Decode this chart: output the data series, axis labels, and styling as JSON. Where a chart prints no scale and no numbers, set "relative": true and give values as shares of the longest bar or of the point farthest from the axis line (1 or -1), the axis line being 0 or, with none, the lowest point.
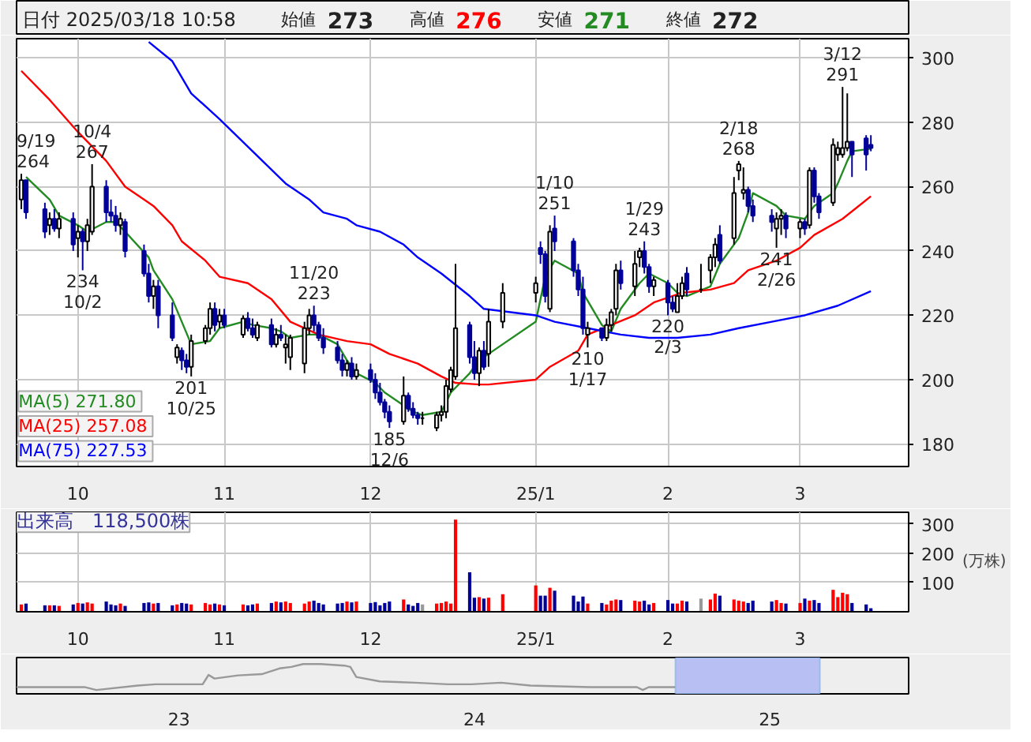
{
  "chart_data": [
    {
      "type": "candlestick",
      "title": "日付 2025/03/18 10:58",
      "x": [
        "2024-09-19",
        "2024-09-20",
        "2024-09-24",
        "2024-09-25",
        "2024-09-26",
        "2024-09-27",
        "2024-09-30",
        "2024-10-01",
        "2024-10-02",
        "2024-10-03",
        "2024-10-04",
        "2024-10-07",
        "2024-10-08",
        "2024-10-09",
        "2024-10-10",
        "2024-10-11",
        "2024-10-15",
        "2024-10-16",
        "2024-10-17",
        "2024-10-18",
        "2024-10-21",
        "2024-10-22",
        "2024-10-23",
        "2024-10-24",
        "2024-10-25",
        "2024-10-28",
        "2024-10-29",
        "2024-10-30",
        "2024-10-31",
        "2024-11-01",
        "2024-11-05",
        "2024-11-06",
        "2024-11-07",
        "2024-11-08",
        "2024-11-11",
        "2024-11-12",
        "2024-11-13",
        "2024-11-14",
        "2024-11-15",
        "2024-11-18",
        "2024-11-19",
        "2024-11-20",
        "2024-11-21",
        "2024-11-22",
        "2024-11-25",
        "2024-11-26",
        "2024-11-27",
        "2024-11-28",
        "2024-11-29",
        "2024-12-02",
        "2024-12-03",
        "2024-12-04",
        "2024-12-05",
        "2024-12-06",
        "2024-12-09",
        "2024-12-10",
        "2024-12-11",
        "2024-12-12",
        "2024-12-13",
        "2024-12-16",
        "2024-12-17",
        "2024-12-18",
        "2024-12-19",
        "2024-12-20",
        "2024-12-23",
        "2024-12-24",
        "2024-12-25",
        "2024-12-26",
        "2024-12-27",
        "2024-12-30",
        "2025-01-06",
        "2025-01-07",
        "2025-01-08",
        "2025-01-09",
        "2025-01-10",
        "2025-01-14",
        "2025-01-15",
        "2025-01-16",
        "2025-01-17",
        "2025-01-20",
        "2025-01-21",
        "2025-01-22",
        "2025-01-23",
        "2025-01-24",
        "2025-01-27",
        "2025-01-28",
        "2025-01-29",
        "2025-01-30",
        "2025-01-31",
        "2025-02-03",
        "2025-02-04",
        "2025-02-05",
        "2025-02-06",
        "2025-02-07",
        "2025-02-10",
        "2025-02-12",
        "2025-02-13",
        "2025-02-14",
        "2025-02-17",
        "2025-02-18",
        "2025-02-19",
        "2025-02-20",
        "2025-02-21",
        "2025-02-25",
        "2025-02-26",
        "2025-02-27",
        "2025-02-28",
        "2025-03-03",
        "2025-03-04",
        "2025-03-05",
        "2025-03-06",
        "2025-03-07",
        "2025-03-10",
        "2025-03-11",
        "2025-03-12",
        "2025-03-13",
        "2025-03-14",
        "2025-03-17",
        "2025-03-18"
      ],
      "colors": [
        "#ffffff",
        "#000099",
        "#000099",
        "#ffffff",
        "#000099",
        "#ffffff",
        "#000099",
        "#ffffff",
        "#000099",
        "#ffffff",
        "#ffffff",
        "#000099",
        "#000099",
        "#000099",
        "#ffffff",
        "#000099",
        "#000099",
        "#000099",
        "#ffffff",
        "#000099",
        "#000099",
        "#ffffff",
        "#000099",
        "#000099",
        "#ffffff",
        "#ffffff",
        "#ffffff",
        "#000099",
        "#ffffff",
        "#000099",
        "#ffffff",
        "#000099",
        "#000099",
        "#ffffff",
        "#000099",
        "#ffffff",
        "#000099",
        "#ffffff",
        "#ffffff",
        "#ffffff",
        "#ffffff",
        "#000099",
        "#000099",
        "#000099",
        "#000099",
        "#000099",
        "#ffffff",
        "#000099",
        "#ffffff",
        "#000099",
        "#000099",
        "#000099",
        "#000099",
        "#000099",
        "#ffffff",
        "#000099",
        "#000099",
        "#000099",
        "#000000",
        "#ffffff",
        "#ffffff",
        "#ffffff",
        "#ffffff",
        "#ffffff",
        "#000099",
        "#000099",
        "#ffffff",
        "#000099",
        "#ffffff",
        "#ffffff",
        "#ffffff",
        "#000099",
        "#000099",
        "#ffffff",
        "#000099",
        "#000099",
        "#000099",
        "#000099",
        "#ffffff",
        "#000099",
        "#ffffff",
        "#ffffff",
        "#ffffff",
        "#000099",
        "#ffffff",
        "#ffffff",
        "#000099",
        "#000099",
        "#ffffff",
        "#000099",
        "#000099",
        "#ffffff",
        "#ffffff",
        "#000099",
        "#000000",
        "#ffffff",
        "#ffffff",
        "#000099",
        "#ffffff",
        "#ffffff",
        "#ffffff",
        "#000099",
        "#000099",
        "#000099",
        "#ffffff",
        "#ffffff",
        "#000099",
        "#ffffff",
        "#000099",
        "#ffffff",
        "#000099",
        "#000099",
        "#ffffff",
        "#ffffff",
        "#ffffff",
        "#ffffff",
        "#000099",
        "#000099",
        "#000099"
      ],
      "ohlc": [
        [
          256,
          264,
          253,
          262
        ],
        [
          262,
          262,
          250,
          252
        ],
        [
          253,
          255,
          244,
          246
        ],
        [
          248,
          252,
          245,
          250
        ],
        [
          250,
          253,
          246,
          247
        ],
        [
          247,
          252,
          244,
          250
        ],
        [
          250,
          252,
          240,
          242
        ],
        [
          244,
          248,
          238,
          246
        ],
        [
          246,
          247,
          234,
          243
        ],
        [
          243,
          250,
          240,
          248
        ],
        [
          246,
          267,
          245,
          260
        ],
        [
          260,
          262,
          249,
          252
        ],
        [
          252,
          256,
          249,
          251
        ],
        [
          251,
          254,
          246,
          248
        ],
        [
          248,
          252,
          245,
          250
        ],
        [
          249,
          250,
          238,
          240
        ],
        [
          240,
          242,
          232,
          233
        ],
        [
          233,
          236,
          224,
          226
        ],
        [
          226,
          231,
          222,
          229
        ],
        [
          229,
          231,
          216,
          220
        ],
        [
          220,
          224,
          212,
          213
        ],
        [
          207,
          211,
          205,
          210
        ],
        [
          209,
          210,
          203,
          206
        ],
        [
          206,
          208,
          202,
          204
        ],
        [
          204,
          214,
          201,
          212
        ],
        [
          212,
          217,
          211,
          216
        ],
        [
          216,
          224,
          214,
          222
        ],
        [
          222,
          224,
          215,
          217
        ],
        [
          218,
          222,
          216,
          220
        ],
        [
          220,
          222,
          216,
          217
        ],
        [
          214,
          220,
          213,
          219
        ],
        [
          219,
          221,
          215,
          216
        ],
        [
          216,
          219,
          213,
          214
        ],
        [
          213,
          218,
          212,
          217
        ],
        [
          217,
          219,
          210,
          211
        ],
        [
          211,
          216,
          210,
          214
        ],
        [
          214,
          217,
          212,
          213
        ],
        [
          210,
          214,
          205,
          211
        ],
        [
          207,
          214,
          203,
          213
        ],
        [
          205,
          218,
          202,
          216
        ],
        [
          216,
          222,
          214,
          220
        ],
        [
          220,
          223,
          215,
          217
        ],
        [
          217,
          218,
          212,
          213
        ],
        [
          213,
          216,
          208,
          210
        ],
        [
          210,
          212,
          205,
          206
        ],
        [
          206,
          208,
          201,
          203
        ],
        [
          203,
          206,
          201,
          205
        ],
        [
          205,
          207,
          200,
          201
        ],
        [
          201,
          205,
          200,
          203
        ],
        [
          203,
          205,
          199,
          200
        ],
        [
          200,
          202,
          194,
          196
        ],
        [
          196,
          199,
          192,
          193
        ],
        [
          193,
          194,
          188,
          190
        ],
        [
          190,
          192,
          185,
          187
        ],
        [
          187,
          201,
          186,
          195
        ],
        [
          195,
          196,
          190,
          191
        ],
        [
          191,
          193,
          188,
          189
        ],
        [
          189,
          190,
          186,
          188
        ],
        [
          188,
          190,
          186,
          188
        ],
        [
          185,
          190,
          184,
          189
        ],
        [
          189,
          192,
          187,
          190
        ],
        [
          190,
          200,
          188,
          198
        ],
        [
          197,
          204,
          196,
          203
        ],
        [
          201,
          236,
          200,
          216
        ],
        [
          217,
          218,
          205,
          207
        ],
        [
          207,
          212,
          200,
          202
        ],
        [
          202,
          210,
          198,
          209
        ],
        [
          209,
          212,
          203,
          204
        ],
        [
          208,
          222,
          204,
          218
        ],
        [
          218,
          230,
          216,
          227
        ],
        [
          227,
          232,
          224,
          230
        ],
        [
          241,
          243,
          236,
          239
        ],
        [
          239,
          240,
          224,
          226
        ],
        [
          222,
          248,
          221,
          246
        ],
        [
          247,
          251,
          240,
          243
        ],
        [
          243,
          244,
          232,
          234
        ],
        [
          234,
          236,
          226,
          228
        ],
        [
          228,
          232,
          214,
          216
        ],
        [
          214,
          218,
          210,
          216
        ],
        [
          216,
          216,
          212,
          213
        ],
        [
          213,
          219,
          212,
          217
        ],
        [
          217,
          222,
          215,
          221
        ],
        [
          222,
          236,
          220,
          234
        ],
        [
          234,
          237,
          228,
          230
        ],
        [
          229,
          240,
          226,
          236
        ],
        [
          238,
          241,
          235,
          240
        ],
        [
          240,
          243,
          233,
          235
        ],
        [
          235,
          236,
          227,
          229
        ],
        [
          229,
          232,
          226,
          231
        ],
        [
          230,
          231,
          220,
          224
        ],
        [
          224,
          226,
          221,
          222
        ],
        [
          221,
          230,
          221,
          226
        ],
        [
          226,
          232,
          225,
          230
        ],
        [
          233,
          235,
          226,
          228
        ],
        [
          228,
          236,
          227,
          228
        ],
        [
          234,
          239,
          230,
          238
        ],
        [
          238,
          244,
          235,
          242
        ],
        [
          245,
          248,
          236,
          237
        ],
        [
          244,
          263,
          242,
          258
        ],
        [
          265,
          268,
          262,
          267
        ],
        [
          258,
          266,
          256,
          259
        ],
        [
          259,
          260,
          252,
          254
        ],
        [
          254,
          256,
          249,
          251
        ],
        [
          251,
          253,
          246,
          249
        ],
        [
          247,
          252,
          241,
          250
        ],
        [
          250,
          253,
          245,
          251
        ],
        [
          251,
          252,
          244,
          247
        ],
        [
          247,
          250,
          244,
          249
        ],
        [
          249,
          250,
          245,
          247
        ],
        [
          248,
          266,
          247,
          265
        ],
        [
          265,
          266,
          255,
          257
        ],
        [
          257,
          258,
          250,
          252
        ],
        [
          255,
          275,
          254,
          273
        ],
        [
          270,
          274,
          268,
          272
        ],
        [
          270,
          291,
          269,
          272
        ],
        [
          272,
          289,
          271,
          274
        ],
        [
          274,
          274,
          263,
          270
        ],
        [
          275,
          276,
          265,
          270
        ],
        [
          273,
          276,
          271,
          272
        ]
      ],
      "series": [
        {
          "name": "MA(5)  271.80",
          "type": "line",
          "color": "#228b22",
          "x": [
            "2024-09-20",
            "2024-09-25",
            "2024-09-27",
            "2024-10-01",
            "2024-10-03",
            "2024-10-07",
            "2024-10-09",
            "2024-10-11",
            "2024-10-16",
            "2024-10-17",
            "2024-10-21",
            "2024-10-23",
            "2024-10-25",
            "2024-10-29",
            "2024-10-31",
            "2024-11-05",
            "2024-11-07",
            "2024-11-11",
            "2024-11-13",
            "2024-11-15",
            "2024-11-19",
            "2024-11-21",
            "2024-11-25",
            "2024-11-27",
            "2024-11-29",
            "2024-12-03",
            "2024-12-05",
            "2024-12-09",
            "2024-12-11",
            "2024-12-13",
            "2024-12-17",
            "2024-12-19",
            "2024-12-23",
            "2024-12-25",
            "2024-12-27",
            "2025-01-06",
            "2025-01-08",
            "2025-01-10",
            "2025-01-15",
            "2025-01-16",
            "2025-01-20",
            "2025-01-22",
            "2025-01-24",
            "2025-01-28",
            "2025-01-30",
            "2025-02-03",
            "2025-02-05",
            "2025-02-07",
            "2025-02-12",
            "2025-02-14",
            "2025-02-18",
            "2025-02-20",
            "2025-02-21",
            "2025-02-26",
            "2025-02-28",
            "2025-03-04",
            "2025-03-06",
            "2025-03-10",
            "2025-03-11",
            "2025-03-13",
            "2025-03-14",
            "2025-03-18"
          ],
          "values": [
            263,
            256,
            251,
            248,
            246,
            249,
            249,
            246,
            238,
            234,
            225,
            218,
            211,
            212,
            216,
            218,
            217,
            216,
            215,
            213,
            214,
            214,
            211,
            206,
            202,
            199,
            196,
            192,
            190,
            189,
            190,
            196,
            202,
            206,
            208,
            218,
            232,
            237,
            233,
            227,
            217,
            215,
            222,
            230,
            233,
            230,
            227,
            226,
            229,
            236,
            244,
            252,
            258,
            254,
            251,
            250,
            254,
            258,
            261,
            268,
            271,
            271.8
          ]
        },
        {
          "name": "MA(25)  257.08",
          "type": "line",
          "color": "#ff0000",
          "x": [
            "2024-09-19",
            "2024-09-25",
            "2024-10-01",
            "2024-10-07",
            "2024-10-11",
            "2024-10-17",
            "2024-10-21",
            "2024-10-23",
            "2024-10-28",
            "2024-10-31",
            "2024-11-06",
            "2024-11-11",
            "2024-11-15",
            "2024-11-21",
            "2024-11-27",
            "2024-12-02",
            "2024-12-06",
            "2024-12-12",
            "2024-12-17",
            "2024-12-20",
            "2024-12-25",
            "2024-12-27",
            "2025-01-06",
            "2025-01-09",
            "2025-01-15",
            "2025-01-17",
            "2025-01-22",
            "2025-01-27",
            "2025-01-31",
            "2025-02-06",
            "2025-02-12",
            "2025-02-17",
            "2025-02-20",
            "2025-02-26",
            "2025-03-03",
            "2025-03-06",
            "2025-03-12",
            "2025-03-18"
          ],
          "values": [
            296,
            287,
            277,
            268,
            260,
            254,
            248,
            243,
            237,
            232,
            230,
            225,
            218,
            214,
            212,
            211,
            208,
            205,
            201,
            199,
            198.5,
            198.5,
            200,
            204,
            209,
            214,
            217,
            220,
            224,
            227,
            228,
            230,
            234,
            237,
            241,
            245,
            250,
            257
          ]
        },
        {
          "name": "MA(75)  227.53",
          "type": "line",
          "color": "#0000ff",
          "x": [
            "2024-10-16",
            "2024-10-21",
            "2024-10-25",
            "2024-10-31",
            "2024-11-07",
            "2024-11-14",
            "2024-11-19",
            "2024-11-22",
            "2024-11-27",
            "2024-11-29",
            "2024-12-04",
            "2024-12-09",
            "2024-12-12",
            "2024-12-17",
            "2024-12-23",
            "2024-12-26",
            "2025-01-06",
            "2025-01-10",
            "2025-01-17",
            "2025-01-24",
            "2025-01-30",
            "2025-02-05",
            "2025-02-12",
            "2025-02-18",
            "2025-02-25",
            "2025-03-04",
            "2025-03-11",
            "2025-03-18"
          ],
          "values": [
            305,
            299,
            289,
            281,
            271,
            261,
            256,
            252,
            250,
            248,
            246,
            242,
            238,
            233,
            226,
            222,
            220,
            218,
            216,
            214,
            213,
            213,
            214,
            216,
            218,
            220,
            223,
            227.5
          ]
        }
      ],
      "xlim": [
        "2024-09-18",
        "2025-03-26"
      ],
      "ylim": [
        173,
        306
      ],
      "xticks": [
        {
          "value": "2024-10-01",
          "label": "10"
        },
        {
          "value": "2024-11-01",
          "label": "11"
        },
        {
          "value": "2024-12-02",
          "label": "12"
        },
        {
          "value": "2025-01-06",
          "label": "25/1"
        },
        {
          "value": "2025-02-03",
          "label": "2"
        },
        {
          "value": "2025-03-03",
          "label": "3"
        }
      ],
      "yticks": [
        180,
        200,
        220,
        240,
        260,
        280,
        300
      ],
      "grid": true,
      "legend": "bottom left",
      "annotations": [
        "始値 273",
        "高値 276",
        "安値 271",
        "終値 272",
        {
          "text": "9/19\n264",
          "x": "2024-09-19",
          "y": 264
        },
        {
          "text": "234\n10/2",
          "x": "2024-10-02",
          "y": 234
        },
        {
          "text": "10/4\n267",
          "x": "2024-10-04",
          "y": 267
        },
        {
          "text": "201\n10/25",
          "x": "2024-10-25",
          "y": 201
        },
        {
          "text": "11/20\n223",
          "x": "2024-11-20",
          "y": 223
        },
        {
          "text": "185\n12/6",
          "x": "2024-12-06",
          "y": 185
        },
        {
          "text": "1/10\n251",
          "x": "2025-01-10",
          "y": 251
        },
        {
          "text": "210\n1/17",
          "x": "2025-01-17",
          "y": 210
        },
        {
          "text": "1/29\n243",
          "x": "2025-01-29",
          "y": 243
        },
        {
          "text": "220\n2/3",
          "x": "2025-02-03",
          "y": 220
        },
        {
          "text": "2/18\n268",
          "x": "2025-02-18",
          "y": 268
        },
        {
          "text": "241\n2/26",
          "x": "2025-02-26",
          "y": 241
        },
        {
          "text": "3/12\n291",
          "x": "2025-03-12",
          "y": 291
        }
      ]
    },
    {
      "type": "bar",
      "title": "出来高　118,500株",
      "ylabel": "(万株)",
      "x": [
        "2024-09-19",
        "2024-09-20",
        "2024-09-24",
        "2024-09-25",
        "2024-09-26",
        "2024-09-27",
        "2024-09-30",
        "2024-10-01",
        "2024-10-02",
        "2024-10-03",
        "2024-10-04",
        "2024-10-07",
        "2024-10-08",
        "2024-10-09",
        "2024-10-10",
        "2024-10-11",
        "2024-10-15",
        "2024-10-16",
        "2024-10-17",
        "2024-10-18",
        "2024-10-21",
        "2024-10-22",
        "2024-10-23",
        "2024-10-24",
        "2024-10-25",
        "2024-10-28",
        "2024-10-29",
        "2024-10-30",
        "2024-10-31",
        "2024-11-01",
        "2024-11-05",
        "2024-11-06",
        "2024-11-07",
        "2024-11-08",
        "2024-11-11",
        "2024-11-12",
        "2024-11-13",
        "2024-11-14",
        "2024-11-15",
        "2024-11-18",
        "2024-11-19",
        "2024-11-20",
        "2024-11-21",
        "2024-11-22",
        "2024-11-25",
        "2024-11-26",
        "2024-11-27",
        "2024-11-28",
        "2024-11-29",
        "2024-12-02",
        "2024-12-03",
        "2024-12-04",
        "2024-12-05",
        "2024-12-06",
        "2024-12-09",
        "2024-12-10",
        "2024-12-11",
        "2024-12-12",
        "2024-12-13",
        "2024-12-16",
        "2024-12-17",
        "2024-12-18",
        "2024-12-19",
        "2024-12-20",
        "2024-12-23",
        "2024-12-24",
        "2024-12-25",
        "2024-12-26",
        "2024-12-27",
        "2024-12-30",
        "2025-01-06",
        "2025-01-07",
        "2025-01-08",
        "2025-01-09",
        "2025-01-10",
        "2025-01-14",
        "2025-01-15",
        "2025-01-16",
        "2025-01-17",
        "2025-01-20",
        "2025-01-21",
        "2025-01-22",
        "2025-01-23",
        "2025-01-24",
        "2025-01-27",
        "2025-01-28",
        "2025-01-29",
        "2025-01-30",
        "2025-01-31",
        "2025-02-03",
        "2025-02-04",
        "2025-02-05",
        "2025-02-06",
        "2025-02-07",
        "2025-02-10",
        "2025-02-12",
        "2025-02-13",
        "2025-02-14",
        "2025-02-17",
        "2025-02-18",
        "2025-02-19",
        "2025-02-20",
        "2025-02-21",
        "2025-02-25",
        "2025-02-26",
        "2025-02-27",
        "2025-02-28",
        "2025-03-03",
        "2025-03-04",
        "2025-03-05",
        "2025-03-06",
        "2025-03-07",
        "2025-03-10",
        "2025-03-11",
        "2025-03-12",
        "2025-03-13",
        "2025-03-14",
        "2025-03-17",
        "2025-03-18"
      ],
      "values": [
        25,
        28,
        22,
        22,
        22,
        20,
        25,
        30,
        28,
        32,
        28,
        35,
        25,
        22,
        28,
        20,
        30,
        32,
        28,
        30,
        22,
        25,
        30,
        28,
        25,
        30,
        25,
        28,
        25,
        22,
        25,
        22,
        25,
        28,
        30,
        35,
        32,
        35,
        30,
        28,
        35,
        38,
        30,
        25,
        28,
        30,
        35,
        32,
        35,
        30,
        33,
        22,
        30,
        35,
        42,
        25,
        20,
        30,
        25,
        28,
        30,
        35,
        28,
        315,
        135,
        48,
        50,
        45,
        48,
        60,
        90,
        55,
        55,
        82,
        72,
        55,
        35,
        52,
        28,
        30,
        25,
        38,
        42,
        40,
        38,
        35,
        38,
        25,
        30,
        40,
        28,
        28,
        38,
        35,
        45,
        42,
        62,
        55,
        42,
        38,
        35,
        30,
        38,
        35,
        40,
        30,
        28,
        30,
        45,
        38,
        40,
        30,
        75,
        50,
        65,
        60,
        30,
        25,
        12
      ],
      "colors": [
        "#ff0000",
        "#000099",
        "#000099",
        "#ff0000",
        "#000099",
        "#ff0000",
        "#000099",
        "#ff0000",
        "#000099",
        "#ff0000",
        "#ff0000",
        "#000099",
        "#000099",
        "#000099",
        "#ff0000",
        "#000099",
        "#000099",
        "#000099",
        "#ff0000",
        "#000099",
        "#000099",
        "#ff0000",
        "#000099",
        "#000099",
        "#ff0000",
        "#ff0000",
        "#ff0000",
        "#000099",
        "#ff0000",
        "#000099",
        "#ff0000",
        "#000099",
        "#000099",
        "#ff0000",
        "#000099",
        "#ff0000",
        "#000099",
        "#ff0000",
        "#ff0000",
        "#ff0000",
        "#ff0000",
        "#000099",
        "#000099",
        "#000099",
        "#000099",
        "#000099",
        "#ff0000",
        "#000099",
        "#ff0000",
        "#000099",
        "#000099",
        "#000099",
        "#000099",
        "#000099",
        "#ff0000",
        "#000099",
        "#000099",
        "#000099",
        "#999999",
        "#ff0000",
        "#ff0000",
        "#ff0000",
        "#ff0000",
        "#ff0000",
        "#000099",
        "#000099",
        "#ff0000",
        "#000099",
        "#ff0000",
        "#ff0000",
        "#ff0000",
        "#000099",
        "#000099",
        "#ff0000",
        "#000099",
        "#000099",
        "#000099",
        "#000099",
        "#ff0000",
        "#000099",
        "#ff0000",
        "#ff0000",
        "#ff0000",
        "#000099",
        "#ff0000",
        "#ff0000",
        "#000099",
        "#000099",
        "#ff0000",
        "#000099",
        "#000099",
        "#ff0000",
        "#ff0000",
        "#000099",
        "#999999",
        "#ff0000",
        "#ff0000",
        "#000099",
        "#ff0000",
        "#ff0000",
        "#ff0000",
        "#000099",
        "#000099",
        "#000099",
        "#ff0000",
        "#ff0000",
        "#000099",
        "#ff0000",
        "#000099",
        "#ff0000",
        "#000099",
        "#000099",
        "#ff0000",
        "#ff0000",
        "#ff0000",
        "#ff0000",
        "#000099",
        "#000099",
        "#000099"
      ],
      "xlim": [
        "2024-09-18",
        "2025-03-26"
      ],
      "ylim": [
        0,
        340
      ],
      "xticks": [
        {
          "value": "2024-10-01",
          "label": "10"
        },
        {
          "value": "2024-11-01",
          "label": "11"
        },
        {
          "value": "2024-12-02",
          "label": "12"
        },
        {
          "value": "2025-01-06",
          "label": "25/1"
        },
        {
          "value": "2025-02-03",
          "label": "2"
        },
        {
          "value": "2025-03-03",
          "label": "3"
        }
      ],
      "yticks": [
        100,
        200,
        300
      ],
      "grid": true
    },
    {
      "type": "line",
      "relative": true,
      "color": "#999999",
      "tick_labels": "x",
      "x": [
        2022.45,
        2022.68,
        2022.72,
        2022.86,
        2022.92,
        2023.08,
        2023.1,
        2023.12,
        2023.2,
        2023.28,
        2023.34,
        2023.38,
        2023.42,
        2023.48,
        2023.56,
        2023.58,
        2023.6,
        2023.68,
        2023.8,
        2023.91,
        2023.99,
        2024.09,
        2024.19,
        2024.39,
        2024.55,
        2024.57,
        2024.59,
        2024.68
      ],
      "values": [
        0.11,
        0.11,
        0,
        0.17,
        0.22,
        0.22,
        0.58,
        0.44,
        0.56,
        0.61,
        0.83,
        0.89,
        1,
        1,
        0.94,
        0.89,
        0.5,
        0.33,
        0.28,
        0.22,
        0.22,
        0.28,
        0.17,
        0.11,
        0.11,
        0,
        0.11,
        0.11
      ],
      "xlim": [
        2022.45,
        2025.47
      ],
      "xticks": [
        {
          "value": 2023,
          "label": "23"
        },
        {
          "value": 2024,
          "label": "24"
        },
        {
          "value": 2025,
          "label": "25"
        }
      ],
      "bands": [
        {
          "axis": "x",
          "from": 2024.68,
          "to": 2025.17,
          "color": "#b8bff2"
        }
      ]
    }
  ]
}
